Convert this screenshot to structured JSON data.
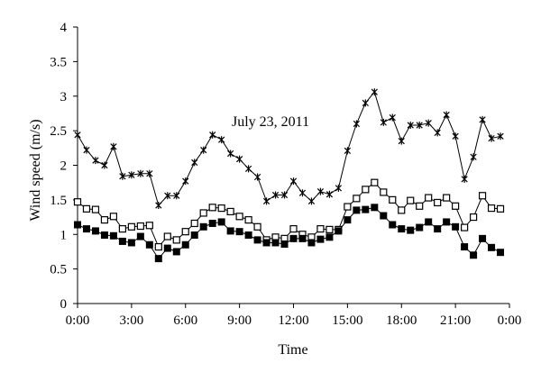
{
  "chart_data": {
    "type": "line",
    "annotation": "July 23, 2011",
    "xlabel": "Time",
    "ylabel": "Wind speed (m/s)",
    "xlim": [
      0,
      24
    ],
    "ylim": [
      0,
      4
    ],
    "xticks": [
      "0:00",
      "3:00",
      "6:00",
      "9:00",
      "12:00",
      "15:00",
      "18:00",
      "21:00",
      "0:00"
    ],
    "yticks": [
      "0",
      "0.5",
      "1",
      "1.5",
      "2",
      "2.5",
      "3",
      "3.5",
      "4"
    ],
    "x_hours": [
      0,
      0.5,
      1,
      1.5,
      2,
      2.5,
      3,
      3.5,
      4,
      4.5,
      5,
      5.5,
      6,
      6.5,
      7,
      7.5,
      8,
      8.5,
      9,
      9.5,
      10,
      10.5,
      11,
      11.5,
      12,
      12.5,
      13,
      13.5,
      14,
      14.5,
      15,
      15.5,
      16,
      16.5,
      17,
      17.5,
      18,
      18.5,
      19,
      19.5,
      20,
      20.5,
      21,
      21.5,
      22,
      22.5,
      23,
      23.5
    ],
    "series": [
      {
        "marker": "star",
        "values": [
          2.44,
          2.22,
          2.07,
          2.0,
          2.27,
          1.84,
          1.86,
          1.88,
          1.88,
          1.42,
          1.56,
          1.56,
          1.77,
          2.04,
          2.22,
          2.44,
          2.37,
          2.17,
          2.09,
          1.95,
          1.83,
          1.48,
          1.57,
          1.57,
          1.77,
          1.6,
          1.48,
          1.62,
          1.58,
          1.67,
          2.21,
          2.6,
          2.9,
          3.06,
          2.62,
          2.69,
          2.35,
          2.58,
          2.58,
          2.61,
          2.47,
          2.73,
          2.42,
          1.8,
          2.12,
          2.66,
          2.39,
          2.42
        ]
      },
      {
        "marker": "open-square",
        "values": [
          1.47,
          1.37,
          1.36,
          1.21,
          1.26,
          1.08,
          1.11,
          1.12,
          1.13,
          0.82,
          0.97,
          0.92,
          1.04,
          1.16,
          1.31,
          1.39,
          1.38,
          1.33,
          1.26,
          1.21,
          1.11,
          0.92,
          0.96,
          0.94,
          1.08,
          1.0,
          0.96,
          1.08,
          1.07,
          1.07,
          1.4,
          1.52,
          1.65,
          1.75,
          1.61,
          1.5,
          1.35,
          1.49,
          1.41,
          1.53,
          1.46,
          1.53,
          1.41,
          1.1,
          1.25,
          1.56,
          1.38,
          1.37
        ]
      },
      {
        "marker": "filled-square",
        "values": [
          1.14,
          1.08,
          1.05,
          0.99,
          0.98,
          0.9,
          0.88,
          0.97,
          0.85,
          0.65,
          0.8,
          0.75,
          0.85,
          0.99,
          1.11,
          1.16,
          1.18,
          1.05,
          1.04,
          0.99,
          0.92,
          0.88,
          0.88,
          0.86,
          0.94,
          0.94,
          0.88,
          0.93,
          0.96,
          1.05,
          1.21,
          1.35,
          1.36,
          1.39,
          1.27,
          1.14,
          1.08,
          1.06,
          1.1,
          1.18,
          1.08,
          1.18,
          1.11,
          0.82,
          0.7,
          0.94,
          0.81,
          0.74
        ]
      }
    ]
  }
}
